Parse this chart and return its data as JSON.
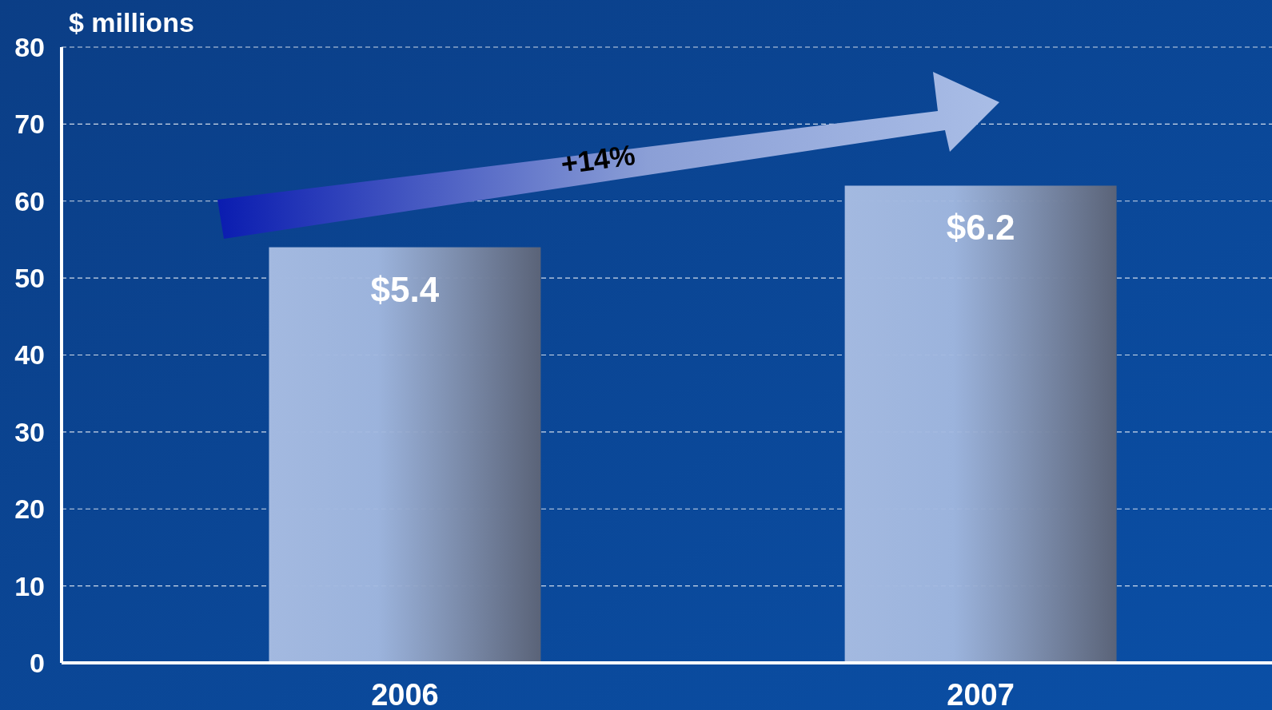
{
  "chart_data": {
    "type": "bar",
    "ylabel": "$ millions",
    "categories": [
      "2006",
      "2007"
    ],
    "values": [
      54,
      62
    ],
    "color": "#a3b9e0",
    "ylim": [
      0,
      80
    ],
    "yticks": [
      0,
      10,
      20,
      30,
      40,
      50,
      60,
      70,
      80
    ],
    "grid": "y",
    "annotations": [
      "+14%",
      {
        "text": "$5.4",
        "x": "2006",
        "y": 54
      },
      {
        "text": "$6.2",
        "x": "2007",
        "y": 62
      }
    ]
  }
}
